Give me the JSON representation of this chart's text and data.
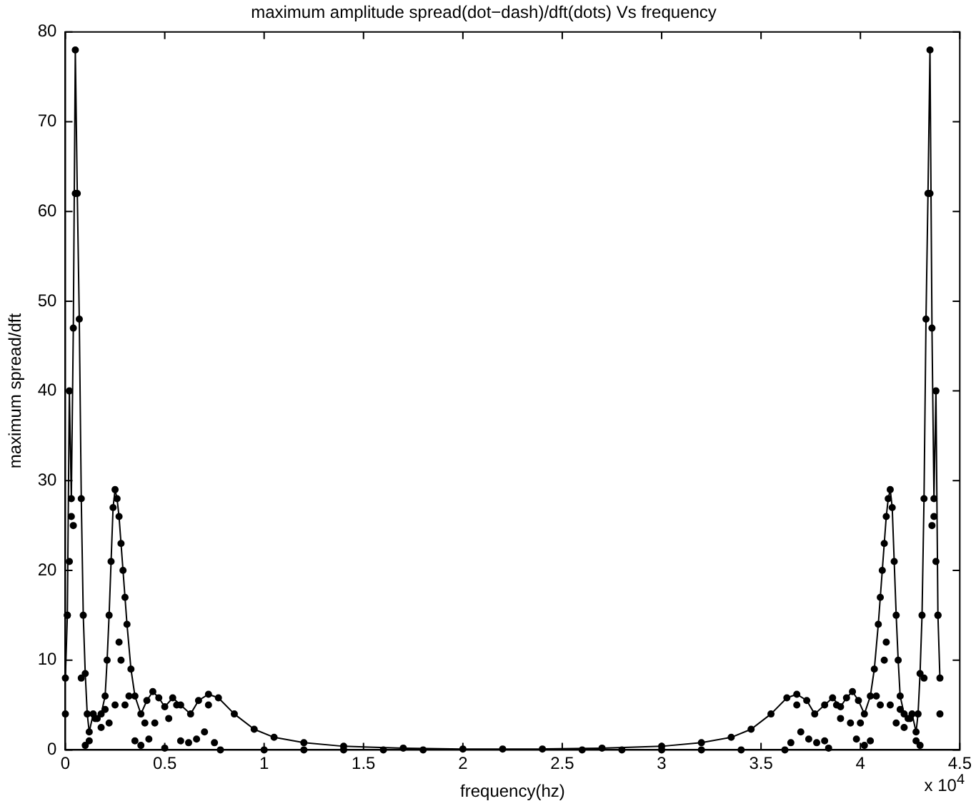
{
  "chart_data": {
    "type": "line",
    "title": "maximum amplitude spread(dot−dash)/dft(dots) Vs frequency",
    "xlabel": "frequency(hz)",
    "ylabel": "maximum spread/dft",
    "annotations": [
      "x 10$^{4}$"
    ],
    "xlim": [
      0,
      4.5
    ],
    "xticks": [
      0,
      0.5,
      1,
      1.5,
      2,
      2.5,
      3,
      3.5,
      4,
      4.5
    ],
    "ylim": [
      0,
      80
    ],
    "yticks": [
      0,
      10,
      20,
      30,
      40,
      50,
      60,
      70,
      80
    ],
    "grid": false,
    "legend": false,
    "marker": "circle",
    "line_style": "solid",
    "series": [
      {
        "color": "#000000",
        "x": [
          0,
          0.01,
          0.02,
          0.03,
          0.04,
          0.05,
          0.06,
          0.07,
          0.08,
          0.09,
          0.1,
          0.11,
          0.12,
          0.14,
          0.16,
          0.18,
          0.2,
          0.21,
          0.22,
          0.23,
          0.24,
          0.25,
          0.26,
          0.27,
          0.28,
          0.29,
          0.3,
          0.31,
          0.33,
          0.35,
          0.38,
          0.41,
          0.44,
          0.47,
          0.5,
          0.54,
          0.58,
          0.63,
          0.67,
          0.72,
          0.77,
          0.85,
          0.95,
          1.05,
          1.2,
          1.4,
          1.7,
          2.0,
          2.2,
          2.4,
          2.7,
          3.0,
          3.2,
          3.35,
          3.45,
          3.55,
          3.63,
          3.68,
          3.73,
          3.77,
          3.82,
          3.86,
          3.9,
          3.93,
          3.96,
          3.99,
          4.02,
          4.05,
          4.07,
          4.09,
          4.1,
          4.11,
          4.12,
          4.13,
          4.14,
          4.15,
          4.16,
          4.17,
          4.18,
          4.19,
          4.2,
          4.22,
          4.24,
          4.26,
          4.28,
          4.29,
          4.3,
          4.31,
          4.32,
          4.33,
          4.34,
          4.35,
          4.36,
          4.37,
          4.38,
          4.39,
          4.4
        ],
        "values": [
          8,
          15,
          40,
          28,
          47,
          78,
          62,
          48,
          28,
          15,
          8.5,
          4,
          2,
          4,
          3.5,
          4,
          6,
          10,
          15,
          21,
          27,
          29,
          28,
          26,
          23,
          20,
          17,
          14,
          9,
          6,
          4,
          5.5,
          6.5,
          5.8,
          4.8,
          5.8,
          5,
          4,
          5.5,
          6.2,
          5.8,
          4,
          2.3,
          1.4,
          0.8,
          0.4,
          0.2,
          0.1,
          0.1,
          0.1,
          0.2,
          0.4,
          0.8,
          1.4,
          2.3,
          4,
          5.8,
          6.2,
          5.5,
          4,
          5,
          5.8,
          4.8,
          5.8,
          6.5,
          5.5,
          4,
          6,
          9,
          14,
          17,
          20,
          23,
          26,
          28,
          29,
          27,
          21,
          15,
          10,
          6,
          4,
          3.5,
          4,
          2,
          4,
          8.5,
          15,
          28,
          48,
          62,
          78,
          47,
          28,
          40,
          15,
          8
        ]
      },
      {
        "type": "scatter",
        "color": "#000000",
        "x": [
          0,
          0.01,
          0.02,
          0.03,
          0.04,
          0.05,
          0.08,
          0.1,
          0.12,
          0.15,
          0.18,
          0.2,
          0.22,
          0.25,
          0.27,
          0.28,
          0.3,
          0.32,
          0.35,
          0.38,
          0.4,
          0.42,
          0.45,
          0.5,
          0.52,
          0.56,
          0.58,
          0.62,
          0.66,
          0.7,
          0.72,
          0.75,
          0.78,
          1.0,
          1.2,
          1.4,
          1.6,
          1.8,
          2.6,
          2.8,
          3.0,
          3.2,
          3.4,
          3.62,
          3.65,
          3.68,
          3.7,
          3.74,
          3.78,
          3.82,
          3.84,
          3.88,
          3.9,
          3.95,
          3.98,
          4.0,
          4.02,
          4.05,
          4.08,
          4.1,
          4.12,
          4.13,
          4.15,
          4.18,
          4.2,
          4.22,
          4.25,
          4.28,
          4.3,
          4.32,
          4.35,
          4.36,
          4.37,
          4.38,
          4.39,
          4.4
        ],
        "values": [
          4,
          15,
          21,
          26,
          25,
          62,
          8,
          0.5,
          1,
          3.5,
          2.5,
          4.5,
          3,
          5,
          12,
          10,
          5,
          6,
          1,
          0.5,
          3,
          1.2,
          3,
          0.2,
          3.5,
          5,
          1,
          0.8,
          1.2,
          2,
          5,
          0.8,
          0,
          0,
          0,
          0,
          0,
          0,
          0,
          0,
          0,
          0,
          0,
          0,
          0.8,
          5,
          2,
          1.2,
          0.8,
          1,
          0.2,
          5,
          3.5,
          3,
          1.2,
          3,
          0.5,
          1,
          6,
          5,
          10,
          12,
          5,
          3,
          4.5,
          2.5,
          3.5,
          1,
          0.5,
          8,
          62,
          25,
          26,
          21,
          15,
          4
        ]
      }
    ]
  }
}
